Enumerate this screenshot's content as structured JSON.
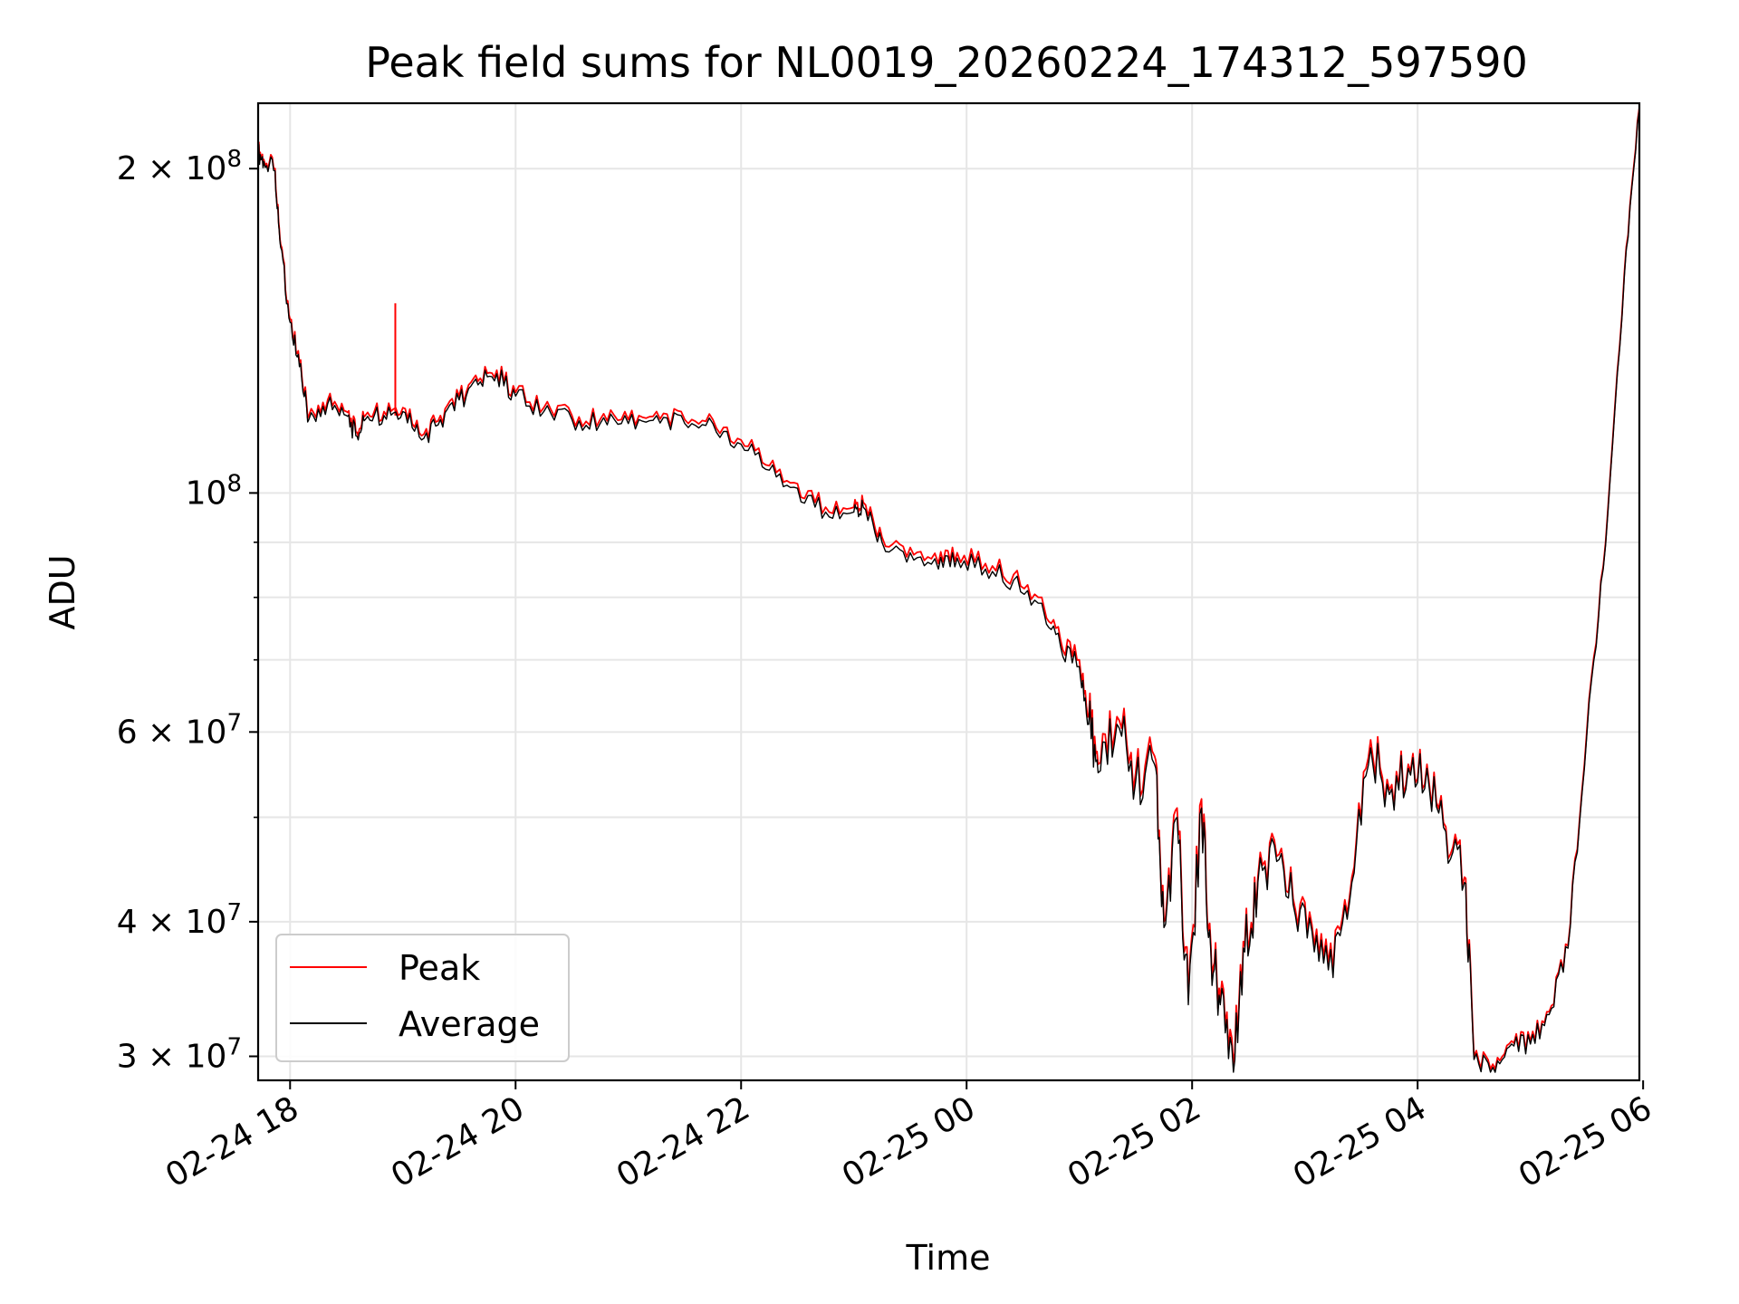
{
  "chart_data": {
    "type": "line",
    "title": "Peak field sums for NL0019_20260224_174312_597590",
    "xlabel": "Time",
    "ylabel": "ADU",
    "yscale": "log",
    "x_ticks": [
      "02-24 18",
      "02-24 20",
      "02-24 22",
      "02-25 00",
      "02-25 02",
      "02-25 04",
      "02-25 06"
    ],
    "y_ticks": [
      {
        "value": 30000000,
        "base": "3",
        "exp": "7"
      },
      {
        "value": 40000000,
        "base": "4",
        "exp": "7"
      },
      {
        "value": 60000000,
        "base": "6",
        "exp": "7"
      },
      {
        "value": 100000000,
        "base": "",
        "exp": "8"
      },
      {
        "value": 200000000,
        "base": "2",
        "exp": "8"
      }
    ],
    "xlim": [
      "2026-02-24 17:43",
      "2026-02-25 05:58"
    ],
    "ylim": [
      28500000,
      230000000
    ],
    "grid": true,
    "legend_position": "lower-left",
    "series": [
      {
        "name": "Peak",
        "color": "#ff0000",
        "spike": {
          "x": "2026-02-24 18:56",
          "y": 150000000
        },
        "points": [
          [
            "2026-02-24 17:43",
            208000000
          ],
          [
            "2026-02-24 17:46",
            204000000
          ],
          [
            "2026-02-24 17:52",
            200000000
          ],
          [
            "2026-02-24 17:55",
            170000000
          ],
          [
            "2026-02-24 18:00",
            145000000
          ],
          [
            "2026-02-24 18:05",
            132000000
          ],
          [
            "2026-02-24 18:10",
            118000000
          ],
          [
            "2026-02-24 18:20",
            122000000
          ],
          [
            "2026-02-24 18:30",
            119000000
          ],
          [
            "2026-02-24 18:35",
            114000000
          ],
          [
            "2026-02-24 18:40",
            118000000
          ],
          [
            "2026-02-24 18:50",
            119000000
          ],
          [
            "2026-02-24 19:00",
            120000000
          ],
          [
            "2026-02-24 19:10",
            113000000
          ],
          [
            "2026-02-24 19:20",
            118000000
          ],
          [
            "2026-02-24 19:30",
            123000000
          ],
          [
            "2026-02-24 19:40",
            127000000
          ],
          [
            "2026-02-24 19:50",
            130000000
          ],
          [
            "2026-02-24 20:00",
            124000000
          ],
          [
            "2026-02-24 20:15",
            120000000
          ],
          [
            "2026-02-24 20:30",
            118000000
          ],
          [
            "2026-02-24 20:45",
            117000000
          ],
          [
            "2026-02-24 21:00",
            117000000
          ],
          [
            "2026-02-24 21:15",
            119000000
          ],
          [
            "2026-02-24 21:30",
            117000000
          ],
          [
            "2026-02-24 21:45",
            117000000
          ],
          [
            "2026-02-24 22:00",
            112000000
          ],
          [
            "2026-02-24 22:15",
            106000000
          ],
          [
            "2026-02-24 22:30",
            102000000
          ],
          [
            "2026-02-24 22:45",
            97000000
          ],
          [
            "2026-02-24 23:00",
            97000000
          ],
          [
            "2026-02-24 23:05",
            98000000
          ],
          [
            "2026-02-24 23:15",
            91000000
          ],
          [
            "2026-02-24 23:30",
            89000000
          ],
          [
            "2026-02-24 23:45",
            86000000
          ],
          [
            "2026-02-24 23:55",
            88000000
          ],
          [
            "2026-02-25 00:10",
            86000000
          ],
          [
            "2026-02-25 00:25",
            84000000
          ],
          [
            "2026-02-25 00:40",
            80000000
          ],
          [
            "2026-02-25 00:50",
            73000000
          ],
          [
            "2026-02-25 01:00",
            70000000
          ],
          [
            "2026-02-25 01:05",
            62000000
          ],
          [
            "2026-02-25 01:10",
            56000000
          ],
          [
            "2026-02-25 01:20",
            62000000
          ],
          [
            "2026-02-25 01:30",
            55000000
          ],
          [
            "2026-02-25 01:40",
            57000000
          ],
          [
            "2026-02-25 01:45",
            40000000
          ],
          [
            "2026-02-25 01:52",
            51000000
          ],
          [
            "2026-02-25 01:58",
            34000000
          ],
          [
            "2026-02-25 02:05",
            52000000
          ],
          [
            "2026-02-25 02:10",
            38000000
          ],
          [
            "2026-02-25 02:15",
            34000000
          ],
          [
            "2026-02-25 02:22",
            29500000
          ],
          [
            "2026-02-25 02:28",
            38000000
          ],
          [
            "2026-02-25 02:35",
            44000000
          ],
          [
            "2026-02-25 02:45",
            46000000
          ],
          [
            "2026-02-25 02:55",
            41000000
          ],
          [
            "2026-02-25 03:05",
            38000000
          ],
          [
            "2026-02-25 03:15",
            36000000
          ],
          [
            "2026-02-25 03:25",
            44000000
          ],
          [
            "2026-02-25 03:35",
            59000000
          ],
          [
            "2026-02-25 03:45",
            53000000
          ],
          [
            "2026-02-25 03:55",
            56000000
          ],
          [
            "2026-02-25 04:05",
            56000000
          ],
          [
            "2026-02-25 04:15",
            49000000
          ],
          [
            "2026-02-25 04:25",
            44000000
          ],
          [
            "2026-02-25 04:30",
            30000000
          ],
          [
            "2026-02-25 04:40",
            29500000
          ],
          [
            "2026-02-25 04:50",
            31000000
          ],
          [
            "2026-02-25 05:00",
            31000000
          ],
          [
            "2026-02-25 05:10",
            33000000
          ],
          [
            "2026-02-25 05:20",
            38000000
          ],
          [
            "2026-02-25 05:30",
            60000000
          ],
          [
            "2026-02-25 05:40",
            90000000
          ],
          [
            "2026-02-25 05:50",
            160000000
          ],
          [
            "2026-02-25 05:58",
            228000000
          ]
        ]
      },
      {
        "name": "Average",
        "color": "#000000",
        "points": [
          [
            "2026-02-24 17:43",
            207000000
          ],
          [
            "2026-02-24 17:46",
            203000000
          ],
          [
            "2026-02-24 17:52",
            199000000
          ],
          [
            "2026-02-24 17:55",
            169000000
          ],
          [
            "2026-02-24 18:00",
            144000000
          ],
          [
            "2026-02-24 18:05",
            131000000
          ],
          [
            "2026-02-24 18:10",
            117000000
          ],
          [
            "2026-02-24 18:20",
            121000000
          ],
          [
            "2026-02-24 18:30",
            118000000
          ],
          [
            "2026-02-24 18:35",
            113000000
          ],
          [
            "2026-02-24 18:40",
            117000000
          ],
          [
            "2026-02-24 18:50",
            118000000
          ],
          [
            "2026-02-24 19:00",
            119000000
          ],
          [
            "2026-02-24 19:10",
            112000000
          ],
          [
            "2026-02-24 19:20",
            117000000
          ],
          [
            "2026-02-24 19:30",
            122000000
          ],
          [
            "2026-02-24 19:40",
            126000000
          ],
          [
            "2026-02-24 19:50",
            129000000
          ],
          [
            "2026-02-24 20:00",
            123000000
          ],
          [
            "2026-02-24 20:15",
            119000000
          ],
          [
            "2026-02-24 20:30",
            117000000
          ],
          [
            "2026-02-24 20:45",
            116000000
          ],
          [
            "2026-02-24 21:00",
            116000000
          ],
          [
            "2026-02-24 21:15",
            118000000
          ],
          [
            "2026-02-24 21:30",
            116000000
          ],
          [
            "2026-02-24 21:45",
            116000000
          ],
          [
            "2026-02-24 22:00",
            111000000
          ],
          [
            "2026-02-24 22:15",
            105000000
          ],
          [
            "2026-02-24 22:30",
            101000000
          ],
          [
            "2026-02-24 22:45",
            96000000
          ],
          [
            "2026-02-24 23:00",
            96000000
          ],
          [
            "2026-02-24 23:05",
            97000000
          ],
          [
            "2026-02-24 23:15",
            90000000
          ],
          [
            "2026-02-24 23:30",
            88000000
          ],
          [
            "2026-02-24 23:45",
            85000000
          ],
          [
            "2026-02-24 23:55",
            87000000
          ],
          [
            "2026-02-25 00:10",
            85000000
          ],
          [
            "2026-02-25 00:25",
            83000000
          ],
          [
            "2026-02-25 00:40",
            79000000
          ],
          [
            "2026-02-25 00:50",
            72000000
          ],
          [
            "2026-02-25 01:00",
            69000000
          ],
          [
            "2026-02-25 01:05",
            61000000
          ],
          [
            "2026-02-25 01:10",
            55000000
          ],
          [
            "2026-02-25 01:20",
            61000000
          ],
          [
            "2026-02-25 01:30",
            54000000
          ],
          [
            "2026-02-25 01:40",
            56000000
          ],
          [
            "2026-02-25 01:45",
            39500000
          ],
          [
            "2026-02-25 01:52",
            50000000
          ],
          [
            "2026-02-25 01:58",
            33500000
          ],
          [
            "2026-02-25 02:05",
            51000000
          ],
          [
            "2026-02-25 02:10",
            37500000
          ],
          [
            "2026-02-25 02:15",
            33500000
          ],
          [
            "2026-02-25 02:22",
            29000000
          ],
          [
            "2026-02-25 02:28",
            37500000
          ],
          [
            "2026-02-25 02:35",
            43500000
          ],
          [
            "2026-02-25 02:45",
            45500000
          ],
          [
            "2026-02-25 02:55",
            40500000
          ],
          [
            "2026-02-25 03:05",
            37500000
          ],
          [
            "2026-02-25 03:15",
            35500000
          ],
          [
            "2026-02-25 03:25",
            43500000
          ],
          [
            "2026-02-25 03:35",
            58000000
          ],
          [
            "2026-02-25 03:45",
            52500000
          ],
          [
            "2026-02-25 03:55",
            55500000
          ],
          [
            "2026-02-25 04:05",
            55500000
          ],
          [
            "2026-02-25 04:15",
            48500000
          ],
          [
            "2026-02-25 04:25",
            43500000
          ],
          [
            "2026-02-25 04:30",
            29800000
          ],
          [
            "2026-02-25 04:40",
            29300000
          ],
          [
            "2026-02-25 04:50",
            30800000
          ],
          [
            "2026-02-25 05:00",
            30800000
          ],
          [
            "2026-02-25 05:10",
            32800000
          ],
          [
            "2026-02-25 05:20",
            37800000
          ],
          [
            "2026-02-25 05:30",
            59500000
          ],
          [
            "2026-02-25 05:40",
            89500000
          ],
          [
            "2026-02-25 05:50",
            159000000
          ],
          [
            "2026-02-25 05:58",
            227000000
          ]
        ]
      }
    ]
  }
}
